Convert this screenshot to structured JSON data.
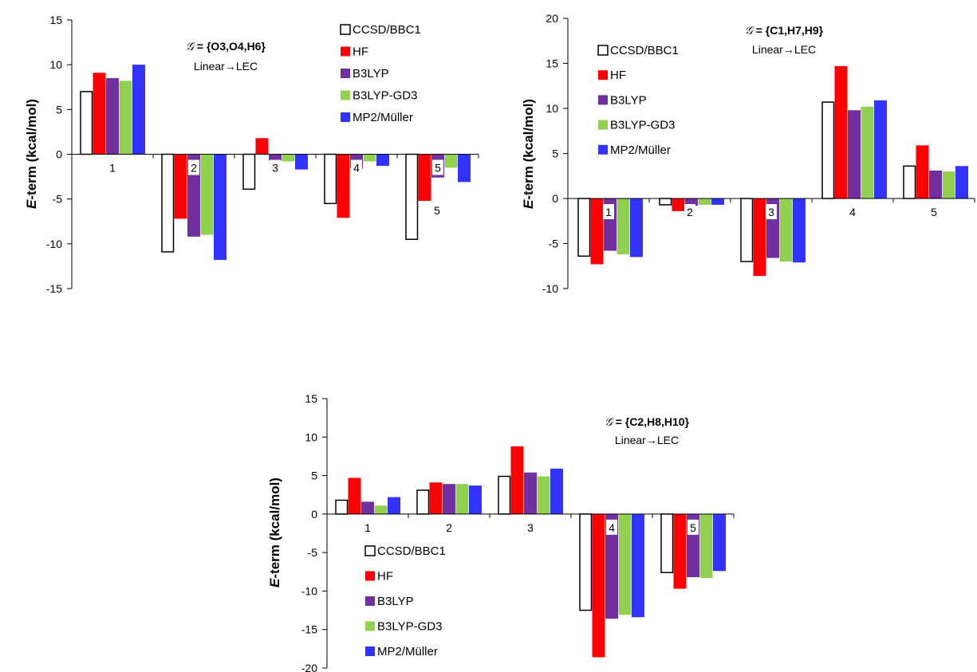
{
  "chart_data": [
    {
      "type": "bar",
      "categories": [
        "1",
        "2",
        "3",
        "4",
        "5"
      ],
      "ylim": [
        -15,
        15
      ],
      "yticks": [
        -15,
        -10,
        -5,
        0,
        5,
        10,
        15
      ],
      "ylabel_italic": "E",
      "ylabel_rest": "-term  (kcal/mol)",
      "annotation_symbol": "𝒢",
      "annotation_bold": " = {O3,O4,H6}",
      "annotation_sub": "Linear→LEC",
      "extra_label": "5",
      "legend_position": "top-right",
      "series": [
        {
          "name": "CCSD/BBC1",
          "color": "#ffffff",
          "values": [
            7.0,
            -10.9,
            -3.9,
            -5.5,
            -9.5
          ]
        },
        {
          "name": "HF",
          "color": "#ff0000",
          "values": [
            9.1,
            -7.2,
            1.8,
            -7.1,
            -5.2
          ]
        },
        {
          "name": "B3LYP",
          "color": "#7030a0",
          "values": [
            8.5,
            -9.2,
            -0.7,
            -1.6,
            -2.6
          ]
        },
        {
          "name": "B3LYP-GD3",
          "color": "#92d050",
          "values": [
            8.2,
            -9.0,
            -0.8,
            -0.8,
            -1.5
          ]
        },
        {
          "name": "MP2/Müller",
          "color": "#3333ff",
          "values": [
            10.0,
            -11.8,
            -1.7,
            -1.3,
            -3.1
          ]
        }
      ]
    },
    {
      "type": "bar",
      "categories": [
        "1",
        "2",
        "3",
        "4",
        "5"
      ],
      "ylim": [
        -10,
        20
      ],
      "yticks": [
        -10,
        -5,
        0,
        5,
        10,
        15,
        20
      ],
      "ylabel_italic": "E",
      "ylabel_rest": "-term  (kcal/mol)",
      "annotation_symbol": "𝒢",
      "annotation_bold": " = {C1,H7,H9}",
      "annotation_sub": "Linear→LEC",
      "legend_position": "top-left",
      "series": [
        {
          "name": "CCSD/BBC1",
          "color": "#ffffff",
          "values": [
            -6.4,
            -0.7,
            -7.0,
            10.7,
            3.6
          ]
        },
        {
          "name": "HF",
          "color": "#ff0000",
          "values": [
            -7.3,
            -1.4,
            -8.6,
            14.7,
            5.9
          ]
        },
        {
          "name": "B3LYP",
          "color": "#7030a0",
          "values": [
            -5.8,
            -0.8,
            -6.6,
            9.8,
            3.1
          ]
        },
        {
          "name": "B3LYP-GD3",
          "color": "#92d050",
          "values": [
            -6.2,
            -0.7,
            -7.0,
            10.2,
            3.0
          ]
        },
        {
          "name": "MP2/Müller",
          "color": "#3333ff",
          "values": [
            -6.5,
            -0.7,
            -7.1,
            10.9,
            3.6
          ]
        }
      ]
    },
    {
      "type": "bar",
      "categories": [
        "1",
        "2",
        "3",
        "4",
        "5"
      ],
      "ylim": [
        -20,
        15
      ],
      "yticks": [
        -20,
        -15,
        -10,
        -5,
        0,
        5,
        10,
        15
      ],
      "ylabel_italic": "E",
      "ylabel_rest": "-term  (kcal/mol)",
      "annotation_symbol": "𝒢",
      "annotation_bold": " = {C2,H8,H10}",
      "annotation_sub": "Linear→LEC",
      "legend_position": "bottom-left",
      "series": [
        {
          "name": "CCSD/BBC1",
          "color": "#ffffff",
          "values": [
            1.8,
            3.1,
            4.9,
            -12.5,
            -7.6
          ]
        },
        {
          "name": "HF",
          "color": "#ff0000",
          "values": [
            4.7,
            4.1,
            8.8,
            -18.6,
            -9.7
          ]
        },
        {
          "name": "B3LYP",
          "color": "#7030a0",
          "values": [
            1.6,
            3.9,
            5.4,
            -13.6,
            -8.2
          ]
        },
        {
          "name": "B3LYP-GD3",
          "color": "#92d050",
          "values": [
            1.1,
            3.9,
            4.9,
            -13.1,
            -8.3
          ]
        },
        {
          "name": "MP2/Müller",
          "color": "#3333ff",
          "values": [
            2.2,
            3.7,
            5.9,
            -13.4,
            -7.4
          ]
        }
      ]
    }
  ]
}
